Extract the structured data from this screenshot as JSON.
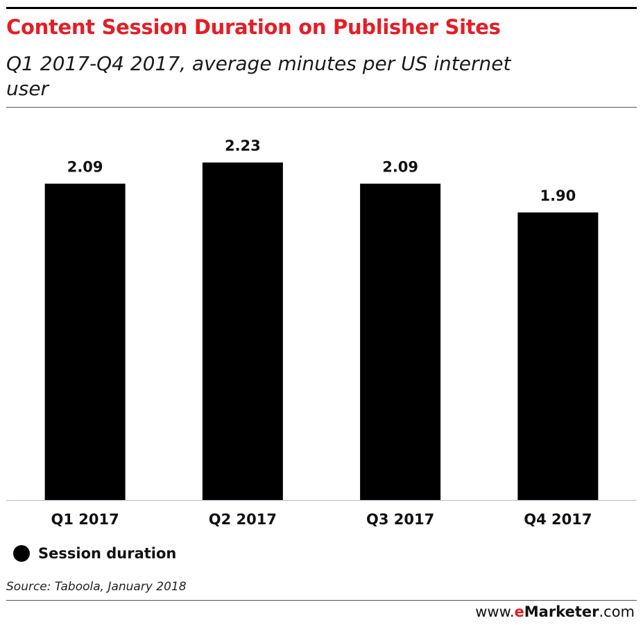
{
  "header": {
    "title": "Content Session Duration on Publisher Sites",
    "subtitle": "Q1 2017-Q4 2017, average minutes per US internet user"
  },
  "legend": {
    "label": "Session duration"
  },
  "footer": {
    "source": "Source: Taboola, January 2018",
    "brand_prefix": "www.",
    "brand_e": "e",
    "brand_name": "Marketer",
    "brand_suffix": ".com"
  },
  "colors": {
    "title": "#e41e26",
    "bar": "#000000",
    "axis": "#b6b6e0"
  },
  "chart_data": {
    "type": "bar",
    "title": "Content Session Duration on Publisher Sites",
    "subtitle": "Q1 2017-Q4 2017, average minutes per US internet user",
    "categories": [
      "Q1 2017",
      "Q2 2017",
      "Q3 2017",
      "Q4 2017"
    ],
    "series": [
      {
        "name": "Session duration",
        "values": [
          2.09,
          2.23,
          2.09,
          1.9
        ]
      }
    ],
    "value_labels": [
      "2.09",
      "2.23",
      "2.09",
      "1.90"
    ],
    "xlabel": "",
    "ylabel": "",
    "ylim": [
      0,
      2.23
    ],
    "grid": false,
    "legend_position": "bottom-left"
  }
}
